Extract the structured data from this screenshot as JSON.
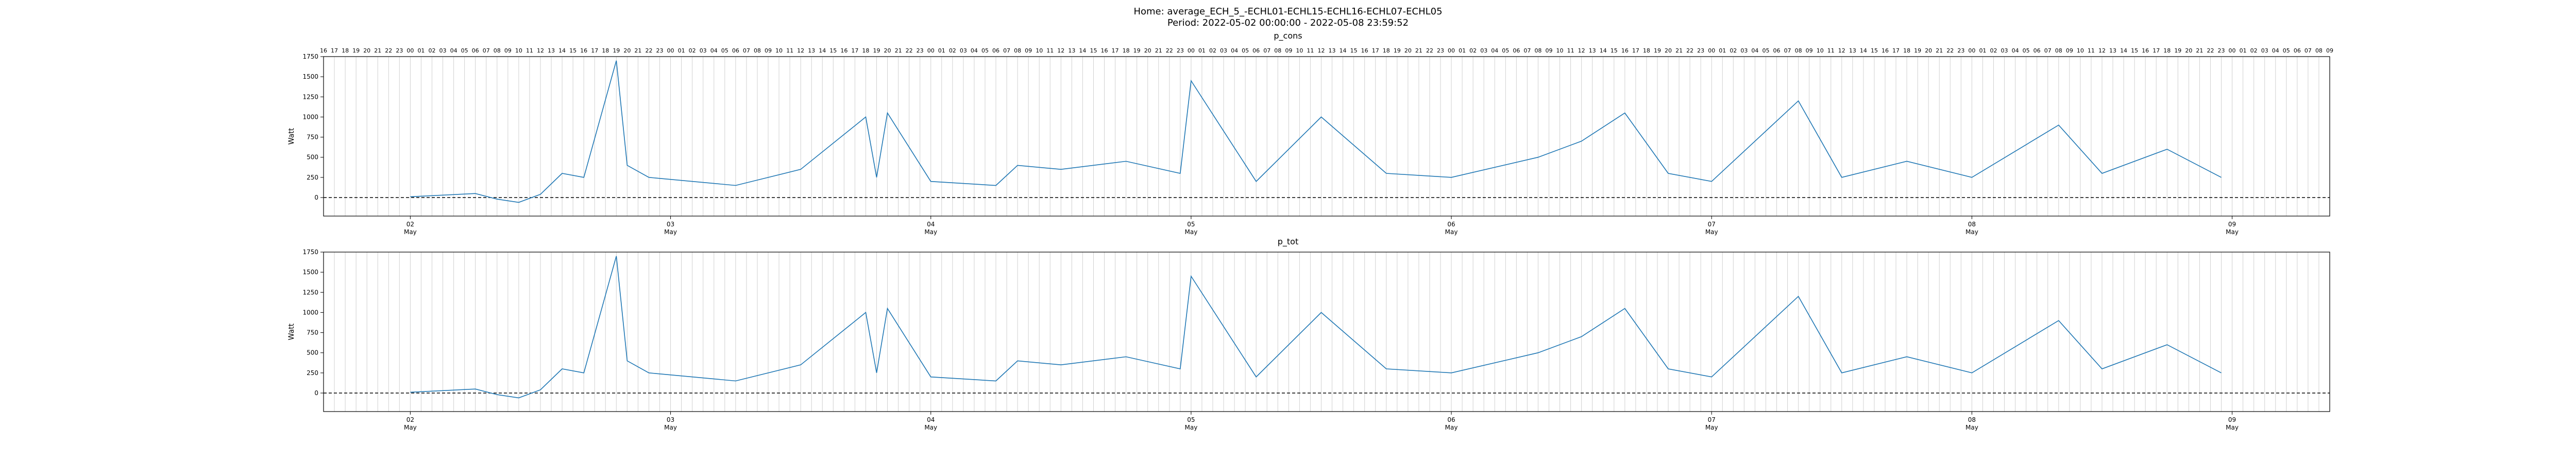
{
  "figure": {
    "title_line1": "Home: average_ECH_5_-ECHL01-ECHL15-ECHL16-ECHL07-ECHL05",
    "title_line2": "Period: 2022-05-02 00:00:00 - 2022-05-08 23:59:52"
  },
  "chart_data": [
    {
      "type": "line",
      "title": "p_cons",
      "ylabel": "Watt",
      "xlabel": "",
      "ylim": [
        -230,
        1750
      ],
      "yticks": [
        0,
        250,
        500,
        750,
        1000,
        1250,
        1500,
        1750
      ],
      "xlim": [
        "2022-05-01 16:00",
        "2022-05-09 09:00"
      ],
      "date_ticks": [
        {
          "day": "02",
          "month": "May"
        },
        {
          "day": "03",
          "month": "May"
        },
        {
          "day": "04",
          "month": "May"
        },
        {
          "day": "05",
          "month": "May"
        },
        {
          "day": "06",
          "month": "May"
        },
        {
          "day": "07",
          "month": "May"
        },
        {
          "day": "08",
          "month": "May"
        },
        {
          "day": "09",
          "month": "May"
        }
      ],
      "hour_tick_labels": "hourly labels 16 … 08 along top axis",
      "zero_line": "dashed black at 0",
      "grid": "vertical hourly gridlines",
      "series_color": "#1f77b4",
      "x": [
        "2022-05-02 00:00",
        "2022-05-02 06:00",
        "2022-05-02 08:00",
        "2022-05-02 10:00",
        "2022-05-02 12:00",
        "2022-05-02 14:00",
        "2022-05-02 16:00",
        "2022-05-02 19:00",
        "2022-05-02 20:00",
        "2022-05-02 22:00",
        "2022-05-03 06:00",
        "2022-05-03 12:00",
        "2022-05-03 18:00",
        "2022-05-03 19:00",
        "2022-05-03 20:00",
        "2022-05-04 00:00",
        "2022-05-04 06:00",
        "2022-05-04 08:00",
        "2022-05-04 12:00",
        "2022-05-04 18:00",
        "2022-05-04 23:00",
        "2022-05-05 00:00",
        "2022-05-05 06:00",
        "2022-05-05 12:00",
        "2022-05-05 18:00",
        "2022-05-06 00:00",
        "2022-05-06 08:00",
        "2022-05-06 12:00",
        "2022-05-06 16:00",
        "2022-05-06 20:00",
        "2022-05-07 00:00",
        "2022-05-07 08:00",
        "2022-05-07 12:00",
        "2022-05-07 18:00",
        "2022-05-08 00:00",
        "2022-05-08 08:00",
        "2022-05-08 12:00",
        "2022-05-08 18:00",
        "2022-05-08 23:00"
      ],
      "values": [
        10,
        50,
        -20,
        -60,
        40,
        300,
        250,
        1700,
        400,
        250,
        150,
        350,
        1000,
        250,
        1050,
        200,
        150,
        400,
        350,
        450,
        300,
        1450,
        200,
        1000,
        300,
        250,
        500,
        700,
        1050,
        300,
        200,
        1200,
        250,
        450,
        250,
        900,
        300,
        600,
        250
      ]
    },
    {
      "type": "line",
      "title": "p_tot",
      "ylabel": "Watt",
      "xlabel": "",
      "ylim": [
        -230,
        1750
      ],
      "yticks": [
        0,
        250,
        500,
        750,
        1000,
        1250,
        1500,
        1750
      ],
      "xlim": [
        "2022-05-01 16:00",
        "2022-05-09 09:00"
      ],
      "date_ticks": [
        {
          "day": "02",
          "month": "May"
        },
        {
          "day": "03",
          "month": "May"
        },
        {
          "day": "04",
          "month": "May"
        },
        {
          "day": "05",
          "month": "May"
        },
        {
          "day": "06",
          "month": "May"
        },
        {
          "day": "07",
          "month": "May"
        },
        {
          "day": "08",
          "month": "May"
        },
        {
          "day": "09",
          "month": "May"
        }
      ],
      "zero_line": "dashed black at 0",
      "grid": "vertical hourly gridlines",
      "series_color": "#1f77b4",
      "x": [
        "2022-05-02 00:00",
        "2022-05-02 06:00",
        "2022-05-02 08:00",
        "2022-05-02 10:00",
        "2022-05-02 12:00",
        "2022-05-02 14:00",
        "2022-05-02 16:00",
        "2022-05-02 19:00",
        "2022-05-02 20:00",
        "2022-05-02 22:00",
        "2022-05-03 06:00",
        "2022-05-03 12:00",
        "2022-05-03 18:00",
        "2022-05-03 19:00",
        "2022-05-03 20:00",
        "2022-05-04 00:00",
        "2022-05-04 06:00",
        "2022-05-04 08:00",
        "2022-05-04 12:00",
        "2022-05-04 18:00",
        "2022-05-04 23:00",
        "2022-05-05 00:00",
        "2022-05-05 06:00",
        "2022-05-05 12:00",
        "2022-05-05 18:00",
        "2022-05-06 00:00",
        "2022-05-06 08:00",
        "2022-05-06 12:00",
        "2022-05-06 16:00",
        "2022-05-06 20:00",
        "2022-05-07 00:00",
        "2022-05-07 08:00",
        "2022-05-07 12:00",
        "2022-05-07 18:00",
        "2022-05-08 00:00",
        "2022-05-08 08:00",
        "2022-05-08 12:00",
        "2022-05-08 18:00",
        "2022-05-08 23:00"
      ],
      "values": [
        10,
        50,
        -20,
        -60,
        40,
        300,
        250,
        1700,
        400,
        250,
        150,
        350,
        1000,
        250,
        1050,
        200,
        150,
        400,
        350,
        450,
        300,
        1450,
        200,
        1000,
        300,
        250,
        500,
        700,
        1050,
        300,
        200,
        1200,
        250,
        450,
        250,
        900,
        300,
        600,
        250
      ]
    }
  ]
}
